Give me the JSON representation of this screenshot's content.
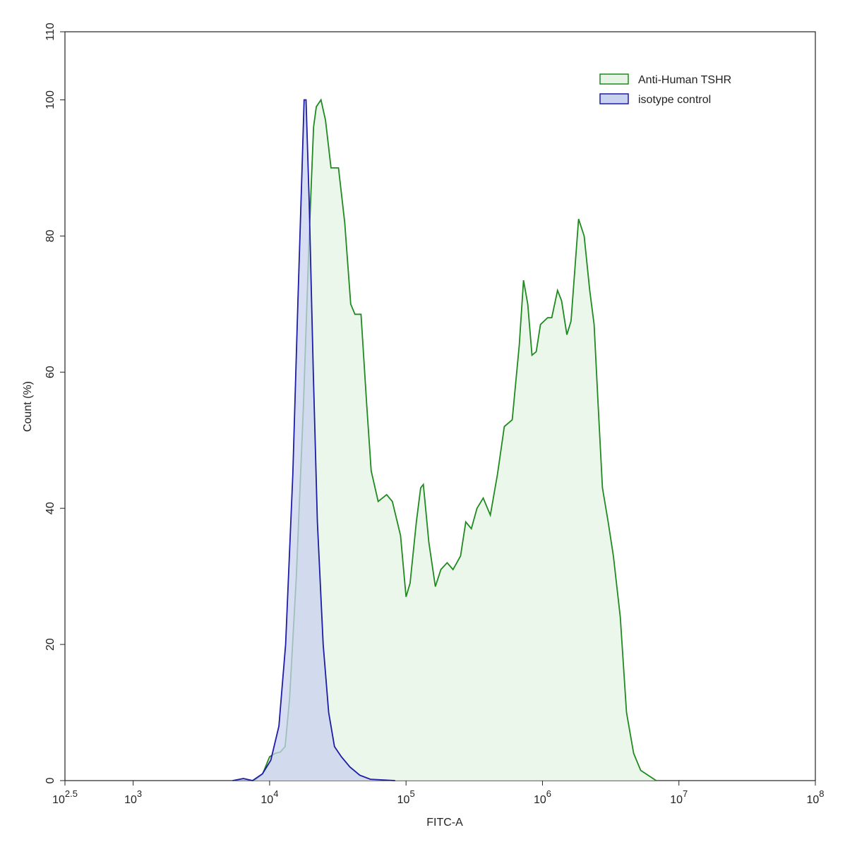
{
  "chart_data": {
    "type": "histogram-overlay",
    "xlabel": "FITC-A",
    "ylabel": "Count  (%)",
    "xscale": "log",
    "xlim": [
      316.23,
      100000000
    ],
    "xticks": [
      {
        "value": 316.23,
        "label": "10",
        "exponent": "2.5"
      },
      {
        "value": 1000,
        "label": "10",
        "exponent": "3"
      },
      {
        "value": 10000,
        "label": "10",
        "exponent": "4"
      },
      {
        "value": 100000,
        "label": "10",
        "exponent": "5"
      },
      {
        "value": 1000000,
        "label": "10",
        "exponent": "6"
      },
      {
        "value": 10000000,
        "label": "10",
        "exponent": "7"
      },
      {
        "value": 100000000,
        "label": "10",
        "exponent": "8"
      }
    ],
    "ylim": [
      0,
      110
    ],
    "yticks": [
      0,
      20,
      40,
      60,
      80,
      100,
      110
    ],
    "legend": "upper right",
    "series": [
      {
        "name": "Anti-Human TSHR",
        "color": "#1f8a1f",
        "fill": "#e6f4e6",
        "x": [
          7700,
          8900,
          10000,
          11000,
          12000,
          13000,
          14000,
          15700,
          17700,
          19500,
          21000,
          22000,
          23800,
          25700,
          28200,
          32000,
          35500,
          39300,
          42200,
          46800,
          51600,
          55500,
          62500,
          67100,
          72100,
          79400,
          91200,
          100000,
          107000,
          119000,
          128000,
          134000,
          147000,
          164000,
          180000,
          200000,
          221000,
          251000,
          274000,
          301000,
          331000,
          368000,
          415000,
          468000,
          525000,
          600000,
          676000,
          726000,
          780000,
          838000,
          900000,
          966000,
          1090000,
          1170000,
          1290000,
          1380000,
          1510000,
          1620000,
          1840000,
          2020000,
          2220000,
          2390000,
          2560000,
          2750000,
          3030000,
          3310000,
          3720000,
          4130000,
          4660000,
          5250000,
          6810000
        ],
        "values": [
          0,
          1,
          3.5,
          4,
          4.2,
          5,
          12,
          30,
          55,
          80,
          96,
          99,
          100,
          97,
          90,
          90,
          82,
          70,
          68.5,
          68.5,
          55,
          45.5,
          41,
          41.5,
          42,
          41,
          36,
          27,
          29,
          38,
          43,
          43.5,
          35,
          28.5,
          31,
          32,
          31,
          33,
          38,
          37,
          40,
          41.5,
          39,
          45,
          52,
          53,
          64,
          73.5,
          70,
          62.5,
          63,
          67,
          68,
          68,
          72,
          70.5,
          65.5,
          67.5,
          82.5,
          80,
          72,
          67,
          55,
          43,
          38,
          33,
          24,
          10,
          4,
          1.5,
          0
        ]
      },
      {
        "name": "isotype control",
        "color": "#1c1ca6",
        "fill": "#c9d2ee",
        "x": [
          5370,
          6430,
          7500,
          8870,
          10200,
          11700,
          13100,
          14800,
          16100,
          17300,
          17900,
          18500,
          19500,
          20900,
          22400,
          24700,
          27100,
          29900,
          33600,
          38800,
          45800,
          54800,
          83200
        ],
        "values": [
          0,
          0.3,
          0,
          1,
          3,
          8,
          20,
          45,
          70,
          90,
          100,
          100,
          85,
          60,
          38,
          20,
          10,
          5,
          3.5,
          2,
          0.8,
          0.2,
          0
        ]
      }
    ]
  }
}
